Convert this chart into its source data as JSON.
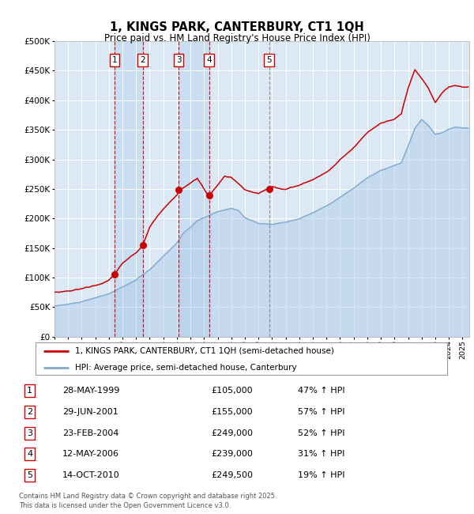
{
  "title": "1, KINGS PARK, CANTERBURY, CT1 1QH",
  "subtitle": "Price paid vs. HM Land Registry's House Price Index (HPI)",
  "legend_label_red": "1, KINGS PARK, CANTERBURY, CT1 1QH (semi-detached house)",
  "legend_label_blue": "HPI: Average price, semi-detached house, Canterbury",
  "footer_line1": "Contains HM Land Registry data © Crown copyright and database right 2025.",
  "footer_line2": "This data is licensed under the Open Government Licence v3.0.",
  "sales": [
    {
      "num": 1,
      "date": "28-MAY-1999",
      "price": 105000,
      "hpi_pct": "47% ↑ HPI"
    },
    {
      "num": 2,
      "date": "29-JUN-2001",
      "price": 155000,
      "hpi_pct": "57% ↑ HPI"
    },
    {
      "num": 3,
      "date": "23-FEB-2004",
      "price": 249000,
      "hpi_pct": "52% ↑ HPI"
    },
    {
      "num": 4,
      "date": "12-MAY-2006",
      "price": 239000,
      "hpi_pct": "31% ↑ HPI"
    },
    {
      "num": 5,
      "date": "14-OCT-2010",
      "price": 249500,
      "hpi_pct": "19% ↑ HPI"
    }
  ],
  "sale_date_floats": [
    1999.41,
    2001.49,
    2004.13,
    2006.36,
    2010.78
  ],
  "ylim": [
    0,
    500000
  ],
  "yticks": [
    0,
    50000,
    100000,
    150000,
    200000,
    250000,
    300000,
    350000,
    400000,
    450000,
    500000
  ],
  "xlim_start": 1995.0,
  "xlim_end": 2025.5,
  "background_color": "#dce9f5",
  "red_color": "#cc0000",
  "blue_color": "#7faacc",
  "blue_fill_color": "#aac8e8",
  "grid_color": "#ffffff",
  "vline_red": "#cc0000",
  "vline_grey": "#888888",
  "hpi_key_times": [
    1995,
    1996,
    1997,
    1998,
    1999,
    2000,
    2001,
    2002,
    2003,
    2004,
    2004.5,
    2005,
    2005.5,
    2006,
    2007,
    2008,
    2008.5,
    2009,
    2010,
    2011,
    2012,
    2013,
    2014,
    2015,
    2016,
    2017,
    2018,
    2019,
    2020,
    2020.5,
    2021,
    2021.5,
    2022,
    2022.5,
    2023,
    2023.5,
    2024,
    2024.5,
    2025
  ],
  "hpi_key_vals": [
    52000,
    55000,
    59000,
    65000,
    72000,
    83000,
    95000,
    112000,
    135000,
    158000,
    175000,
    185000,
    195000,
    200000,
    210000,
    215000,
    212000,
    200000,
    190000,
    188000,
    192000,
    198000,
    208000,
    220000,
    235000,
    250000,
    268000,
    280000,
    288000,
    292000,
    320000,
    350000,
    365000,
    355000,
    340000,
    342000,
    348000,
    352000,
    350000
  ],
  "red_key_times": [
    1995,
    1996,
    1997,
    1998,
    1999.0,
    1999.41,
    2000.0,
    2001.0,
    2001.49,
    2002,
    2003,
    2004.0,
    2004.13,
    2005.0,
    2005.5,
    2006.36,
    2007.0,
    2007.5,
    2008.0,
    2009.0,
    2010.0,
    2010.78,
    2011,
    2012,
    2013,
    2014,
    2015,
    2016,
    2017,
    2018,
    2019,
    2020,
    2020.5,
    2021.0,
    2021.5,
    2022.0,
    2022.5,
    2023.0,
    2023.5,
    2024.0,
    2024.5,
    2025
  ],
  "red_key_vals": [
    75000,
    78000,
    82000,
    88000,
    96000,
    105000,
    125000,
    142000,
    155000,
    185000,
    218000,
    242000,
    249000,
    262000,
    270000,
    239000,
    258000,
    272000,
    270000,
    248000,
    240000,
    249500,
    252000,
    248000,
    255000,
    265000,
    278000,
    298000,
    320000,
    345000,
    362000,
    368000,
    375000,
    418000,
    448000,
    432000,
    415000,
    392000,
    408000,
    418000,
    420000,
    418000
  ]
}
